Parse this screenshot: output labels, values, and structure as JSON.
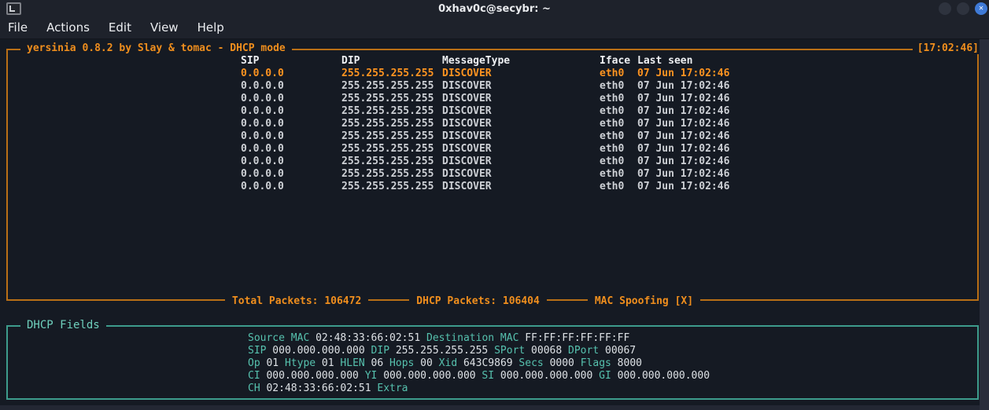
{
  "window": {
    "title": "0xhav0c@secybr: ~",
    "controls": {
      "minimize": "",
      "maximize": "",
      "close": "✕"
    }
  },
  "menu": {
    "items": [
      "File",
      "Actions",
      "Edit",
      "View",
      "Help"
    ]
  },
  "main_panel": {
    "title": "yersinia 0.8.2 by Slay & tomac - DHCP mode",
    "clock": "[17:02:46]",
    "table": {
      "columns": {
        "sip": "SIP",
        "dip": "DIP",
        "type": "MessageType",
        "iface": "Iface",
        "seen": "Last seen"
      },
      "selected_index": 0,
      "rows": [
        {
          "sip": "0.0.0.0",
          "dip": "255.255.255.255",
          "type": "DISCOVER",
          "iface": "eth0",
          "seen": "07 Jun 17:02:46"
        },
        {
          "sip": "0.0.0.0",
          "dip": "255.255.255.255",
          "type": "DISCOVER",
          "iface": "eth0",
          "seen": "07 Jun 17:02:46"
        },
        {
          "sip": "0.0.0.0",
          "dip": "255.255.255.255",
          "type": "DISCOVER",
          "iface": "eth0",
          "seen": "07 Jun 17:02:46"
        },
        {
          "sip": "0.0.0.0",
          "dip": "255.255.255.255",
          "type": "DISCOVER",
          "iface": "eth0",
          "seen": "07 Jun 17:02:46"
        },
        {
          "sip": "0.0.0.0",
          "dip": "255.255.255.255",
          "type": "DISCOVER",
          "iface": "eth0",
          "seen": "07 Jun 17:02:46"
        },
        {
          "sip": "0.0.0.0",
          "dip": "255.255.255.255",
          "type": "DISCOVER",
          "iface": "eth0",
          "seen": "07 Jun 17:02:46"
        },
        {
          "sip": "0.0.0.0",
          "dip": "255.255.255.255",
          "type": "DISCOVER",
          "iface": "eth0",
          "seen": "07 Jun 17:02:46"
        },
        {
          "sip": "0.0.0.0",
          "dip": "255.255.255.255",
          "type": "DISCOVER",
          "iface": "eth0",
          "seen": "07 Jun 17:02:46"
        },
        {
          "sip": "0.0.0.0",
          "dip": "255.255.255.255",
          "type": "DISCOVER",
          "iface": "eth0",
          "seen": "07 Jun 17:02:46"
        },
        {
          "sip": "0.0.0.0",
          "dip": "255.255.255.255",
          "type": "DISCOVER",
          "iface": "eth0",
          "seen": "07 Jun 17:02:46"
        }
      ]
    },
    "status": {
      "total": "Total Packets: 106472",
      "dhcp": "DHCP Packets: 106404",
      "spoofing": "MAC Spoofing [X]"
    }
  },
  "fields_panel": {
    "title": "DHCP Fields",
    "lines": [
      [
        {
          "label": "Source MAC",
          "value": "02:48:33:66:02:51"
        },
        {
          "label": "Destination MAC",
          "value": "FF:FF:FF:FF:FF:FF"
        }
      ],
      [
        {
          "label": "SIP",
          "value": "000.000.000.000"
        },
        {
          "label": "DIP",
          "value": "255.255.255.255"
        },
        {
          "label": "SPort",
          "value": "00068"
        },
        {
          "label": "DPort",
          "value": "00067"
        }
      ],
      [
        {
          "label": "Op",
          "value": "01"
        },
        {
          "label": "Htype",
          "value": "01"
        },
        {
          "label": "HLEN",
          "value": "06"
        },
        {
          "label": "Hops",
          "value": "00"
        },
        {
          "label": "Xid",
          "value": "643C9869"
        },
        {
          "label": "Secs",
          "value": "0000"
        },
        {
          "label": "Flags",
          "value": "8000"
        }
      ],
      [
        {
          "label": "CI",
          "value": "000.000.000.000"
        },
        {
          "label": "YI",
          "value": "000.000.000.000"
        },
        {
          "label": "SI",
          "value": "000.000.000.000"
        },
        {
          "label": "GI",
          "value": "000.000.000.000"
        }
      ],
      [
        {
          "label": "CH",
          "value": "02:48:33:66:02:51"
        },
        {
          "label": "Extra",
          "value": ""
        }
      ]
    ]
  },
  "colors": {
    "accent_orange": "#ef8e1d",
    "selected_orange": "#ff9420",
    "accent_teal": "#56c1ae",
    "close_button_blue": "#3f7ad6",
    "terminal_bg": "#151a23"
  }
}
